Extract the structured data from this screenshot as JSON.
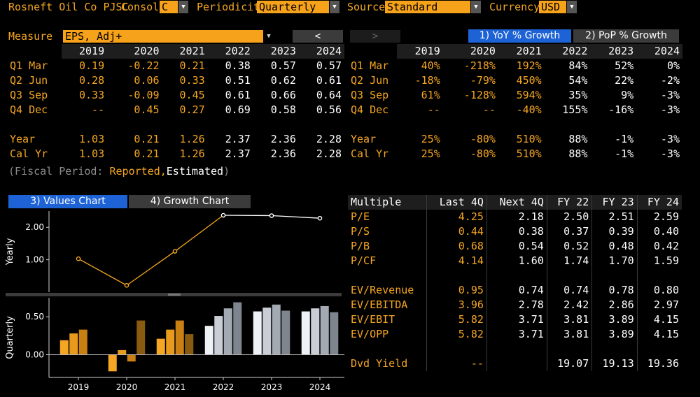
{
  "topbar": {
    "company": "Rosneft Oil Co PJSC",
    "consol_label": "Consol",
    "consol_value": "C",
    "periodicity_label": "Periodicity",
    "periodicity_value": "Quarterly",
    "source_label": "Source",
    "source_value": "Standard",
    "currency_label": "Currency",
    "currency_value": "USD"
  },
  "measure": {
    "label": "Measure",
    "value": "EPS, Adj+"
  },
  "nav": {
    "prev": "<",
    "next": ">"
  },
  "growth_tabs": {
    "yoy": "1) YoY % Growth",
    "pop": "2) PoP % Growth",
    "active": "yoy"
  },
  "values_table": {
    "columns": [
      "2019",
      "2020",
      "2021",
      "2022",
      "2023",
      "2024"
    ],
    "rows": [
      {
        "label": "Q1 Mar",
        "cells": [
          "0.19",
          "-0.22",
          "0.21",
          "0.38",
          "0.57",
          "0.57"
        ]
      },
      {
        "label": "Q2 Jun",
        "cells": [
          "0.28",
          "0.06",
          "0.33",
          "0.51",
          "0.62",
          "0.61"
        ]
      },
      {
        "label": "Q3 Sep",
        "cells": [
          "0.33",
          "-0.09",
          "0.45",
          "0.61",
          "0.66",
          "0.64"
        ]
      },
      {
        "label": "Q4 Dec",
        "cells": [
          "--",
          "0.45",
          "0.27",
          "0.69",
          "0.58",
          "0.56"
        ]
      },
      {
        "label": "Year",
        "cells": [
          "1.03",
          "0.21",
          "1.26",
          "2.37",
          "2.36",
          "2.28"
        ]
      },
      {
        "label": "Cal Yr",
        "cells": [
          "1.03",
          "0.21",
          "1.26",
          "2.37",
          "2.36",
          "2.28"
        ]
      }
    ],
    "estimated_from_index": 3
  },
  "growth_table": {
    "columns": [
      "2019",
      "2020",
      "2021",
      "2022",
      "2023",
      "2024"
    ],
    "rows": [
      {
        "label": "Q1 Mar",
        "cells": [
          "40%",
          "-218%",
          "192%",
          "84%",
          "52%",
          "0%"
        ]
      },
      {
        "label": "Q2 Jun",
        "cells": [
          "-18%",
          "-79%",
          "450%",
          "54%",
          "22%",
          "-2%"
        ]
      },
      {
        "label": "Q3 Sep",
        "cells": [
          "61%",
          "-128%",
          "594%",
          "35%",
          "9%",
          "-3%"
        ]
      },
      {
        "label": "Q4 Dec",
        "cells": [
          "--",
          "--",
          "-40%",
          "155%",
          "-16%",
          "-3%"
        ]
      },
      {
        "label": "Year",
        "cells": [
          "25%",
          "-80%",
          "510%",
          "88%",
          "-1%",
          "-3%"
        ]
      },
      {
        "label": "Cal Yr",
        "cells": [
          "25%",
          "-80%",
          "510%",
          "88%",
          "-1%",
          "-3%"
        ]
      }
    ]
  },
  "fiscal_note": {
    "open": "(Fiscal Period:",
    "reported": "Reported,",
    "estimated": "Estimated",
    "close": ")"
  },
  "chart_tabs": {
    "values": "3) Values Chart",
    "growth": "4) Growth Chart",
    "active": "values"
  },
  "multiples": {
    "columns": [
      "Multiple",
      "Last 4Q",
      "Next 4Q",
      "FY 22",
      "FY 23",
      "FY 24"
    ],
    "rows": [
      {
        "label": "P/E",
        "cells": [
          "4.25",
          "2.18",
          "2.50",
          "2.51",
          "2.59"
        ]
      },
      {
        "label": "P/S",
        "cells": [
          "0.44",
          "0.38",
          "0.37",
          "0.39",
          "0.40"
        ]
      },
      {
        "label": "P/B",
        "cells": [
          "0.68",
          "0.54",
          "0.52",
          "0.48",
          "0.42"
        ]
      },
      {
        "label": "P/CF",
        "cells": [
          "4.14",
          "1.60",
          "1.74",
          "1.70",
          "1.59"
        ]
      },
      {
        "label": "EV/Revenue",
        "cells": [
          "0.95",
          "0.74",
          "0.74",
          "0.78",
          "0.80"
        ]
      },
      {
        "label": "EV/EBITDA",
        "cells": [
          "3.96",
          "2.78",
          "2.42",
          "2.86",
          "2.97"
        ]
      },
      {
        "label": "EV/EBIT",
        "cells": [
          "5.82",
          "3.71",
          "3.81",
          "3.89",
          "4.15"
        ]
      },
      {
        "label": "EV/OPP",
        "cells": [
          "5.82",
          "3.71",
          "3.81",
          "3.89",
          "4.15"
        ]
      },
      {
        "label": "Dvd Yield",
        "cells": [
          "--",
          "",
          "19.07",
          "19.13",
          "19.36"
        ]
      }
    ]
  },
  "chart_data": [
    {
      "type": "line",
      "ylabel": "Yearly",
      "x": [
        "2019",
        "2020",
        "2021",
        "2022",
        "2023",
        "2024"
      ],
      "series": [
        {
          "values": [
            1.03,
            0.21,
            1.26,
            2.37,
            2.36,
            2.28
          ],
          "estimated_from_index": 3
        }
      ],
      "yticks": [
        "1.00",
        "2.00"
      ],
      "ylim": [
        0,
        2.5
      ],
      "colors": {
        "reported": "#f5a623",
        "estimated": "#ffffff"
      }
    },
    {
      "type": "bar",
      "ylabel": "Quarterly",
      "categories": [
        "2019",
        "2020",
        "2021",
        "2022",
        "2023",
        "2024"
      ],
      "series": [
        {
          "values": [
            0.19,
            -0.22,
            0.21,
            0.38,
            0.57,
            0.57
          ]
        },
        {
          "values": [
            0.28,
            0.06,
            0.33,
            0.51,
            0.62,
            0.61
          ]
        },
        {
          "values": [
            0.33,
            -0.09,
            0.45,
            0.61,
            0.66,
            0.64
          ]
        },
        {
          "values": [
            null,
            0.45,
            0.27,
            0.69,
            0.58,
            0.56
          ]
        }
      ],
      "yticks": [
        "0.00",
        "0.50"
      ],
      "ylim": [
        -0.3,
        0.75
      ],
      "estimated_from_index": 3,
      "reported_colors": [
        "#f5a623",
        "#e89a1c",
        "#c97f12",
        "#8a5a10"
      ],
      "estimated_colors": [
        "#eef2f6",
        "#c9ced6",
        "#a4aab3",
        "#7f858e"
      ]
    }
  ]
}
